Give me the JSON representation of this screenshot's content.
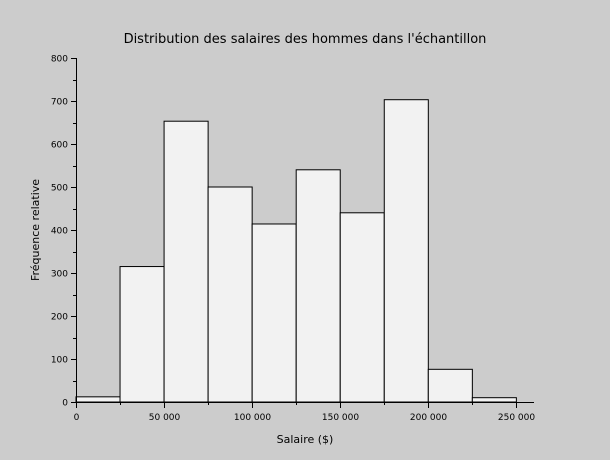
{
  "chart_data": {
    "type": "bar",
    "title": "Distribution des salaires des hommes dans l'échantillon",
    "xlabel": "Salaire ($)",
    "ylabel": "Fréquence relative",
    "xlim": [
      0,
      260000
    ],
    "ylim": [
      0,
      800
    ],
    "x_ticks": [
      0,
      50000,
      100000,
      150000,
      200000,
      250000
    ],
    "x_tick_labels": [
      "0",
      "50 000",
      "100 000",
      "150 000",
      "200 000",
      "250 000"
    ],
    "y_ticks": [
      0,
      100,
      200,
      300,
      400,
      500,
      600,
      700,
      800
    ],
    "y_tick_labels": [
      "0",
      "100",
      "200",
      "300",
      "400",
      "500",
      "600",
      "700",
      "800"
    ],
    "bin_edges": [
      0,
      25000,
      50000,
      75000,
      100000,
      125000,
      150000,
      175000,
      200000,
      225000,
      250000
    ],
    "values": [
      12,
      315,
      653,
      500,
      414,
      540,
      440,
      703,
      76,
      10
    ],
    "grid": false
  },
  "colors": {
    "background": "#cccccc",
    "bar_fill": "#f2f2f2",
    "bar_stroke": "#000000"
  }
}
